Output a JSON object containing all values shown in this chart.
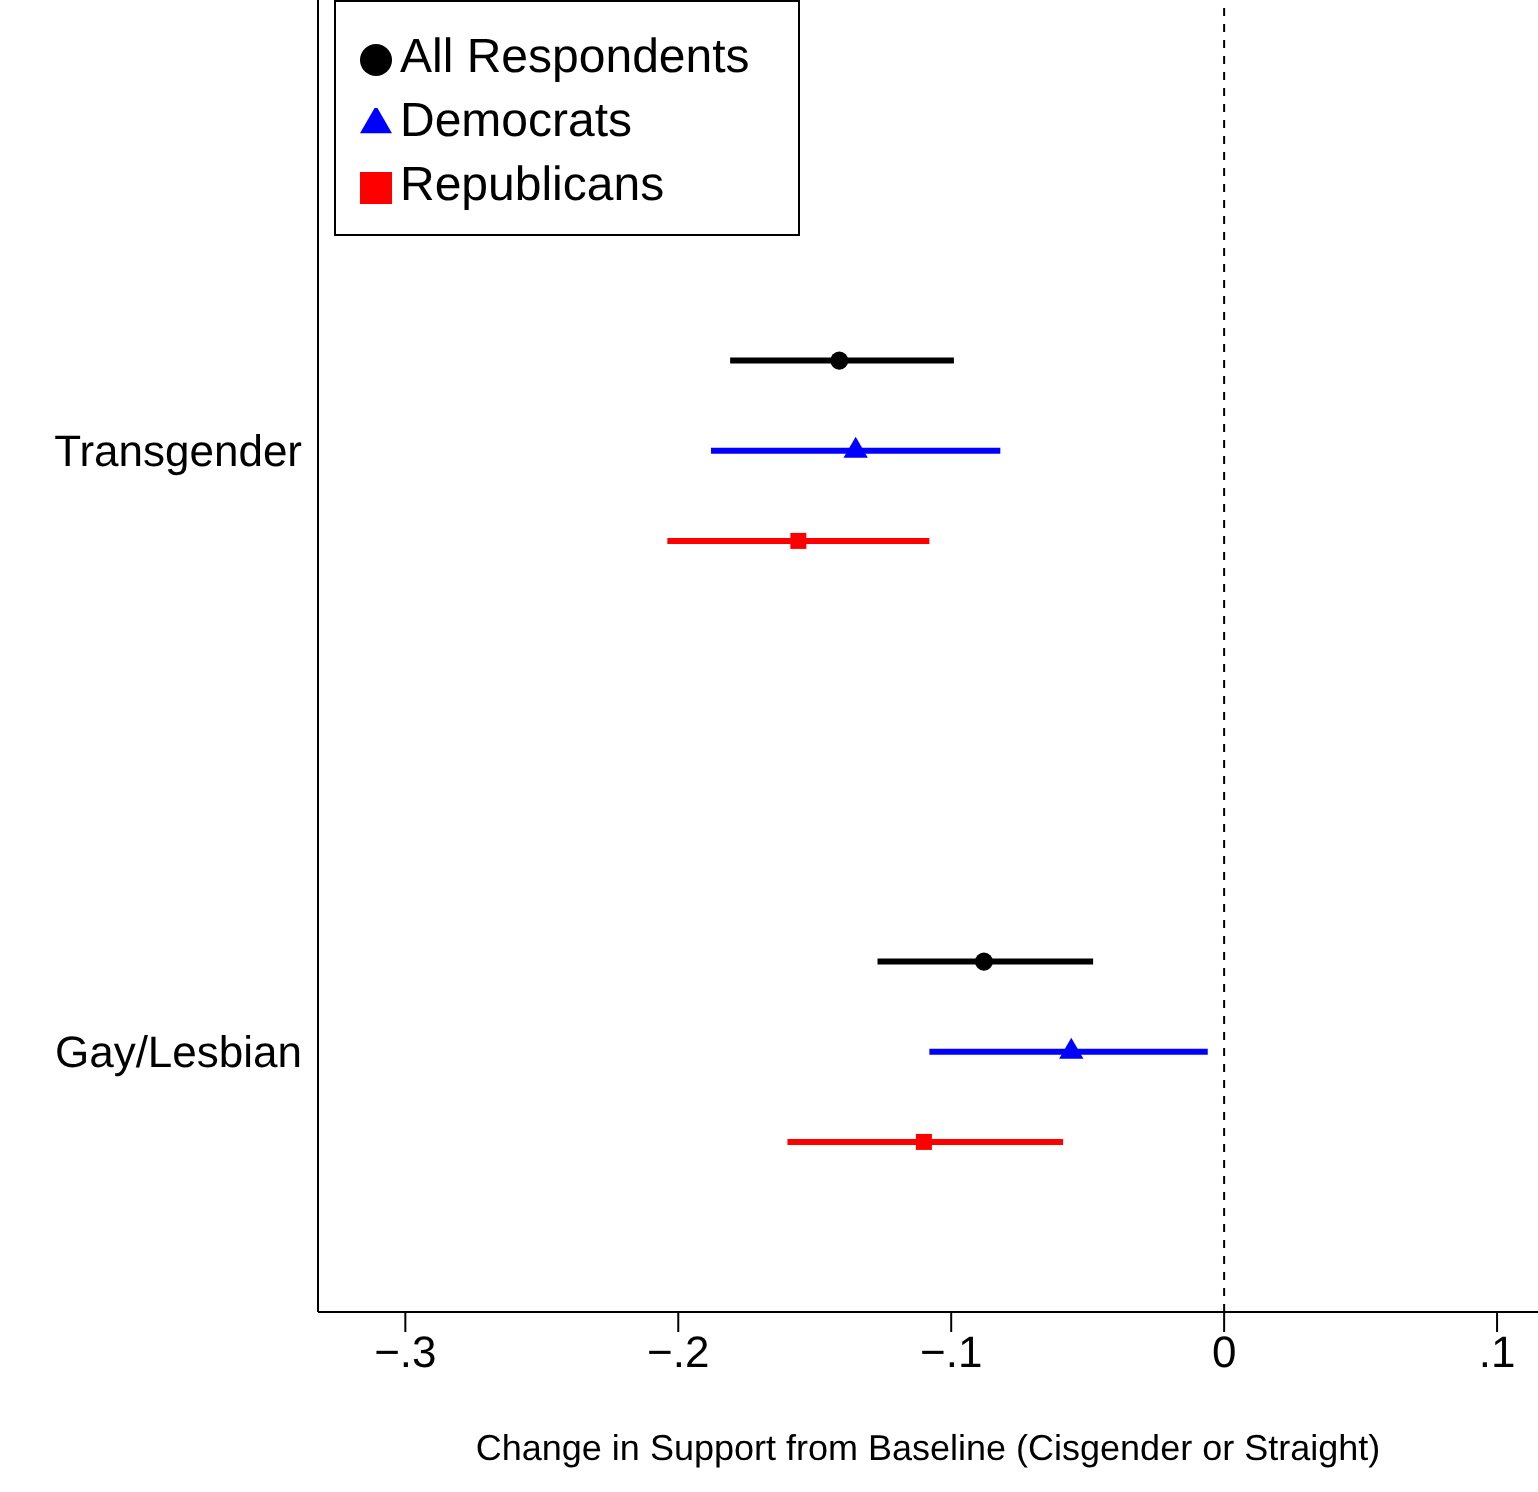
{
  "chart_data": {
    "type": "scatter",
    "orientation": "horizontal",
    "categories": [
      "Transgender",
      "Gay/Lesbian"
    ],
    "series": [
      {
        "name": "All Respondents",
        "color": "#000000",
        "marker": "circle",
        "values": [
          -0.141,
          -0.088
        ],
        "errors": [
          [
            -0.181,
            -0.099
          ],
          [
            -0.127,
            -0.048
          ]
        ]
      },
      {
        "name": "Democrats",
        "color": "#0000ff",
        "marker": "triangle",
        "values": [
          -0.135,
          -0.056
        ],
        "errors": [
          [
            -0.188,
            -0.082
          ],
          [
            -0.108,
            -0.006
          ]
        ]
      },
      {
        "name": "Republicans",
        "color": "#ff0000",
        "marker": "square",
        "values": [
          -0.156,
          -0.11
        ],
        "errors": [
          [
            -0.204,
            -0.108
          ],
          [
            -0.16,
            -0.059
          ]
        ]
      }
    ],
    "xlabel": "Change in Support from Baseline (Cisgender or Straight)",
    "xlim": [
      -0.332,
      0.115
    ],
    "xticks": [
      {
        "value": -0.3,
        "label": "−.3"
      },
      {
        "value": -0.2,
        "label": "−.2"
      },
      {
        "value": -0.1,
        "label": "−.1"
      },
      {
        "value": 0,
        "label": "0"
      },
      {
        "value": 0.1,
        "label": ".1"
      }
    ],
    "ref_lines": [
      {
        "axis": "x",
        "value": 0,
        "line_style": "dashed",
        "color": "#000000"
      }
    ],
    "legend": "top left",
    "grid": false
  }
}
